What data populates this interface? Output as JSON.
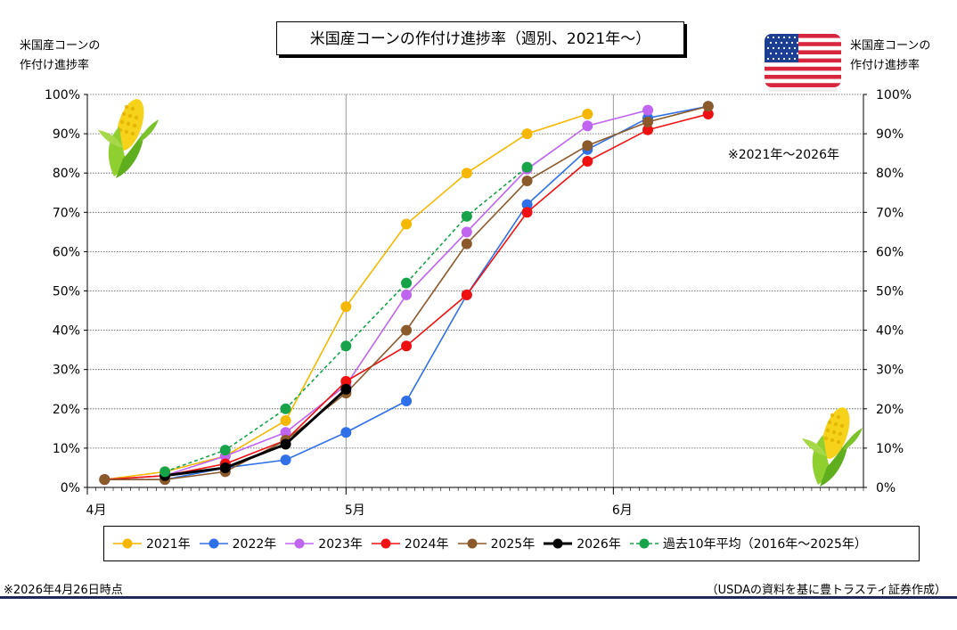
{
  "title": "米国産コーンの作付け進捗率（週別、2021年〜）",
  "y_axis_title_left": [
    "米国産コーンの",
    "作付け進捗率"
  ],
  "y_axis_title_right": [
    "米国産コーンの",
    "作付け進捗率"
  ],
  "period_note": "※2021年〜2026年",
  "footer": {
    "note": "※2026年4月26日時点",
    "source": "（USDAの資料を基に豊トラスティ証券作成）"
  },
  "icons": {
    "flag": "us-flag-icon",
    "corn": "corn-icon"
  },
  "chart_data": {
    "type": "line",
    "x_unit": "day-of-year",
    "x_ticks": [
      {
        "label": "4月",
        "x": 91
      },
      {
        "label": "5月",
        "x": 121
      },
      {
        "label": "6月",
        "x": 152
      }
    ],
    "xlim": [
      91,
      181
    ],
    "ylim": [
      0,
      100
    ],
    "y_ticks": [
      "0%",
      "10%",
      "20%",
      "30%",
      "40%",
      "50%",
      "60%",
      "70%",
      "80%",
      "90%",
      "100%"
    ],
    "grid": "horizontal dotted, vertical solid at month starts",
    "legend_position": "bottom",
    "series": [
      {
        "name": "2021年",
        "color": "#f5b700",
        "dash": false,
        "points": [
          [
            93,
            2
          ],
          [
            100,
            4
          ],
          [
            107,
            8
          ],
          [
            114,
            17
          ],
          [
            121,
            46
          ],
          [
            128,
            67
          ],
          [
            135,
            80
          ],
          [
            142,
            90
          ],
          [
            149,
            95
          ]
        ]
      },
      {
        "name": "2022年",
        "color": "#2f6fe8",
        "dash": false,
        "points": [
          [
            93,
            2
          ],
          [
            100,
            2
          ],
          [
            107,
            5
          ],
          [
            114,
            7
          ],
          [
            121,
            14
          ],
          [
            128,
            22
          ],
          [
            135,
            49
          ],
          [
            142,
            72
          ],
          [
            149,
            86
          ],
          [
            156,
            94
          ],
          [
            163,
            97
          ]
        ]
      },
      {
        "name": "2023年",
        "color": "#c065f0",
        "dash": false,
        "points": [
          [
            93,
            2
          ],
          [
            100,
            3
          ],
          [
            107,
            8
          ],
          [
            114,
            14
          ],
          [
            121,
            26
          ],
          [
            128,
            49
          ],
          [
            135,
            65
          ],
          [
            142,
            81
          ],
          [
            149,
            92
          ],
          [
            156,
            96
          ]
        ]
      },
      {
        "name": "2024年",
        "color": "#ee1111",
        "dash": false,
        "points": [
          [
            93,
            2
          ],
          [
            100,
            3
          ],
          [
            107,
            6
          ],
          [
            114,
            12
          ],
          [
            121,
            27
          ],
          [
            128,
            36
          ],
          [
            135,
            49
          ],
          [
            142,
            70
          ],
          [
            149,
            83
          ],
          [
            156,
            91
          ],
          [
            163,
            95
          ]
        ]
      },
      {
        "name": "2025年",
        "color": "#8b5a2b",
        "dash": false,
        "points": [
          [
            93,
            2
          ],
          [
            100,
            2
          ],
          [
            107,
            4
          ],
          [
            114,
            12
          ],
          [
            121,
            24
          ],
          [
            128,
            40
          ],
          [
            135,
            62
          ],
          [
            142,
            78
          ],
          [
            149,
            87
          ],
          [
            156,
            93
          ],
          [
            163,
            97
          ]
        ]
      },
      {
        "name": "2026年",
        "color": "#000000",
        "dash": false,
        "thick": true,
        "points": [
          [
            100,
            3
          ],
          [
            107,
            5
          ],
          [
            114,
            11
          ],
          [
            121,
            25
          ]
        ]
      },
      {
        "name": "過去10年平均（2016年〜2025年）",
        "color": "#16a34a",
        "dash": true,
        "points": [
          [
            100,
            4
          ],
          [
            107,
            9.5
          ],
          [
            114,
            20
          ],
          [
            121,
            36
          ],
          [
            128,
            52
          ],
          [
            135,
            69
          ],
          [
            142,
            81.5
          ]
        ]
      }
    ]
  }
}
